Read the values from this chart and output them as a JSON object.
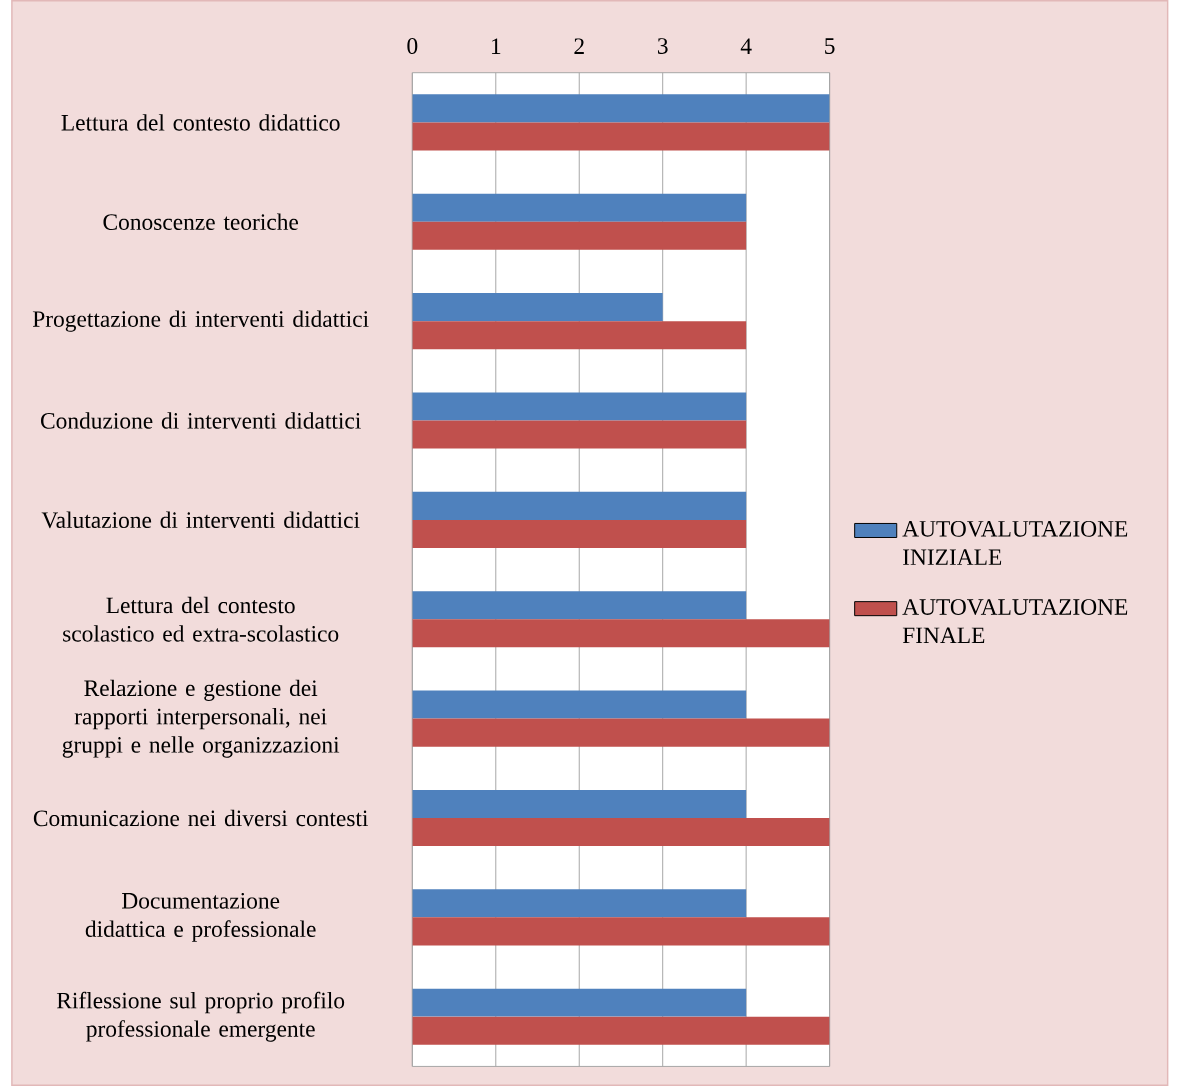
{
  "chart_data": {
    "type": "bar",
    "orientation": "horizontal",
    "categories": [
      "Lettura del contesto didattico",
      "Conoscenze teoriche",
      "Progettazione di interventi didattici",
      "Conduzione di interventi didattici",
      "Valutazione di interventi didattici",
      "Lettura del contesto scolastico ed extra-scolastico",
      "Relazione e gestione dei rapporti interpersonali, nei gruppi e nelle organizzazioni",
      "Comunicazione nei diversi contesti",
      "Documentazione didattica e professionale",
      "Riflessione sul proprio profilo professionale emergente"
    ],
    "series": [
      {
        "name": "AUTOVALUTAZIONE INIZIALE",
        "color": "#4f81bd",
        "values": [
          5,
          4,
          3,
          4,
          4,
          4,
          4,
          4,
          4,
          4
        ]
      },
      {
        "name": "AUTOVALUTAZIONE FINALE",
        "color": "#c0504d",
        "values": [
          5,
          4,
          4,
          4,
          4,
          5,
          5,
          5,
          5,
          5
        ]
      }
    ],
    "xlim": [
      0,
      5
    ],
    "xticks": [
      0,
      1,
      2,
      3,
      4,
      5
    ],
    "grid": "x",
    "legend": "right"
  }
}
